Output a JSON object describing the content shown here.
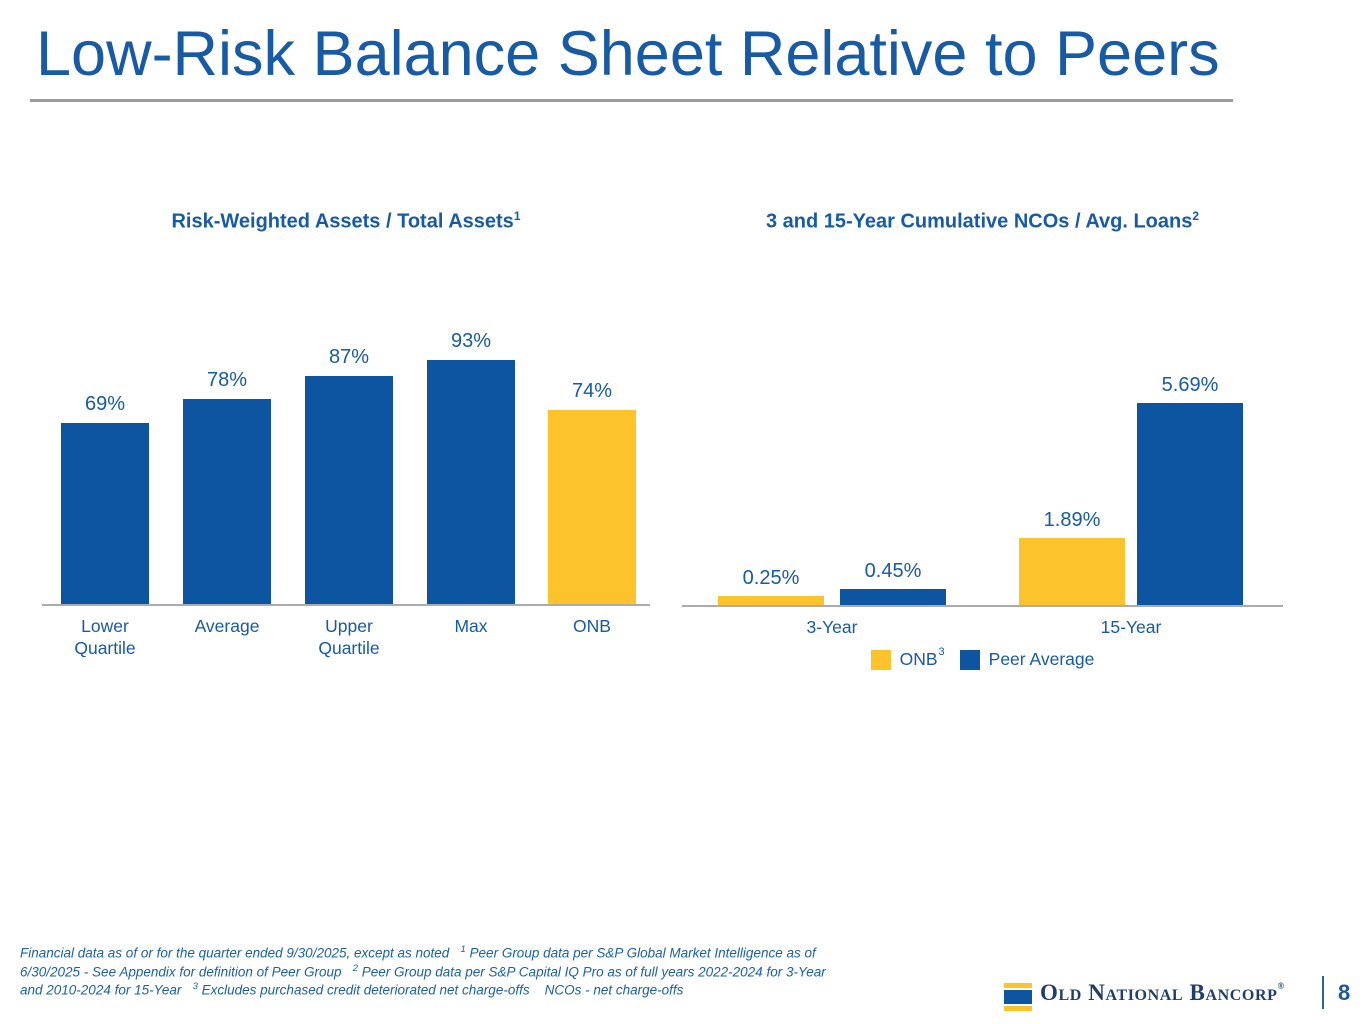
{
  "slide": {
    "title": "Low-Risk Balance Sheet Relative to Peers"
  },
  "colors": {
    "bar_blue": "#0d54a1",
    "bar_yellow": "#fdc32c",
    "text_blue": "#175aa5",
    "footnote_blue": "#1a61ab",
    "logo_navy": "#1f3e6e",
    "rule_gray": "#9c9c9c",
    "axis_gray": "#ababab"
  },
  "chart_data": [
    {
      "type": "bar",
      "title": "Risk-Weighted Assets / Total Assets",
      "title_sup": "1",
      "categories": [
        "Lower Quartile",
        "Average",
        "Upper Quartile",
        "Max",
        "ONB"
      ],
      "values": [
        69,
        78,
        87,
        93,
        74
      ],
      "labels": [
        "69%",
        "78%",
        "87%",
        "93%",
        "74%"
      ],
      "bar_colors": [
        "blue",
        "blue",
        "blue",
        "blue",
        "yellow"
      ],
      "unit": "%",
      "ylim": [
        0,
        100
      ],
      "grid": false,
      "data_labels": "above bars"
    },
    {
      "type": "bar",
      "title": "3 and 15-Year Cumulative NCOs / Avg. Loans",
      "title_sup": "2",
      "categories": [
        "3-Year",
        "15-Year"
      ],
      "series": [
        {
          "name": "ONB",
          "name_sup": "3",
          "color": "yellow",
          "values": [
            0.25,
            1.89
          ],
          "labels": [
            "0.25%",
            "1.89%"
          ]
        },
        {
          "name": "Peer Average",
          "color": "blue",
          "values": [
            0.45,
            5.69
          ],
          "labels": [
            "0.45%",
            "5.69%"
          ]
        }
      ],
      "unit": "%",
      "ylim": [
        0,
        6
      ],
      "grid": false,
      "legend_position": "bottom",
      "data_labels": "above bars"
    }
  ],
  "footnote": {
    "segments": [
      {
        "text": "Financial data as of or for the quarter ended 9/30/2025, except as noted   "
      },
      {
        "sup": "1"
      },
      {
        "text": " Peer Group data per S&P Global Market Intelligence as of\n6/30/2025 - See Appendix for definition of Peer Group   "
      },
      {
        "sup": "2"
      },
      {
        "text": " Peer Group data per S&P Capital IQ Pro as of full years 2022-2024 for 3-Year\nand 2010-2024 for 15-Year   "
      },
      {
        "sup": "3"
      },
      {
        "text": " Excludes purchased credit deteriorated net charge-offs    NCOs - net charge-offs"
      }
    ]
  },
  "footer": {
    "logo_text": "Old National Bancorp",
    "logo_trademark": "®",
    "page_number": "8"
  }
}
